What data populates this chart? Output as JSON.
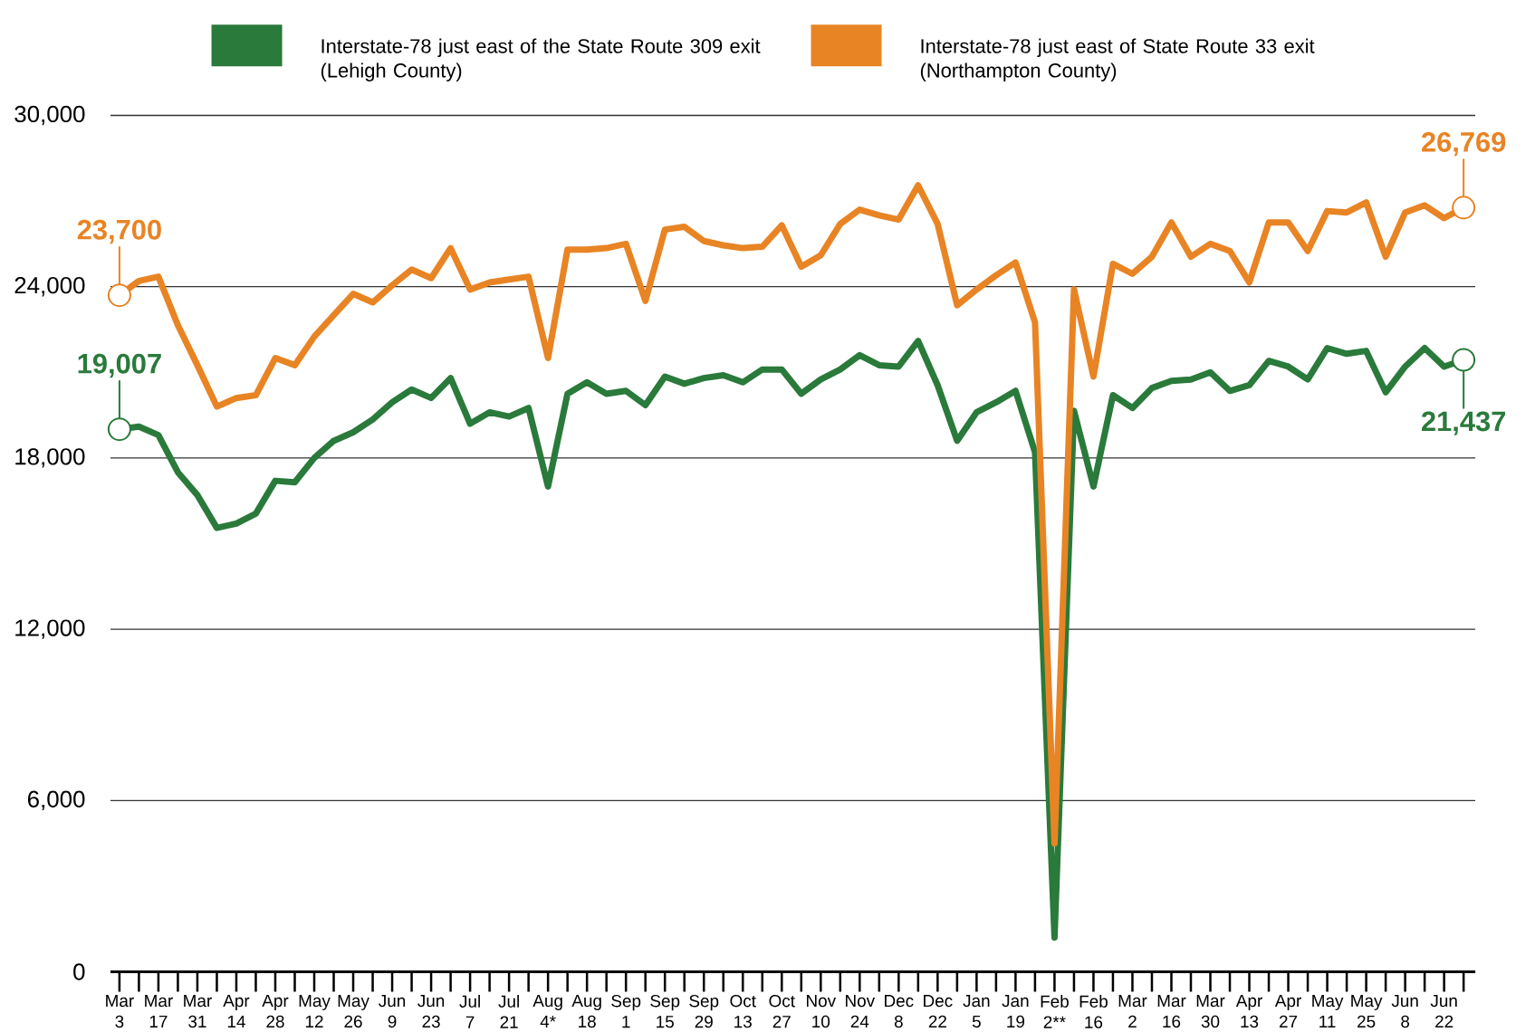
{
  "chart_data": {
    "type": "line",
    "categories": [
      "Mar 3",
      null,
      "Mar 17",
      null,
      "Mar 31",
      null,
      "Apr 14",
      null,
      "Apr 28",
      null,
      "May 12",
      null,
      "May 26",
      null,
      "Jun 9",
      null,
      "Jun 23",
      null,
      "Jul 7",
      null,
      "Jul 21",
      null,
      "Aug 4*",
      null,
      "Aug 18",
      null,
      "Sep 1",
      null,
      "Sep 15",
      null,
      "Sep 29",
      null,
      "Oct 13",
      null,
      "Oct 27",
      null,
      "Nov 10",
      null,
      "Nov 24",
      null,
      "Dec 8",
      null,
      "Dec 22",
      null,
      "Jan 5",
      null,
      "Jan 19",
      null,
      "Feb 2**",
      null,
      "Feb 16",
      null,
      "Mar 2",
      null,
      "Mar 16",
      null,
      "Mar 30",
      null,
      "Apr 13",
      null,
      "Apr 27",
      null,
      "May 11",
      null,
      "May 25",
      null,
      "Jun 8",
      null,
      "Jun 22",
      null
    ],
    "series": [
      {
        "name": "Interstate-78 just east of the State Route 309 exit (Lehigh County)",
        "color": "#2a7a3b",
        "values": [
          19007,
          19100,
          18800,
          17500,
          16700,
          15550,
          15700,
          16050,
          17200,
          17150,
          18000,
          18600,
          18900,
          19350,
          19950,
          20400,
          20100,
          20800,
          19200,
          19600,
          19450,
          19750,
          17000,
          20250,
          20650,
          20250,
          20350,
          19850,
          20850,
          20600,
          20800,
          20900,
          20650,
          21100,
          21100,
          20250,
          20750,
          21100,
          21600,
          21250,
          21200,
          22100,
          20550,
          18600,
          19600,
          19950,
          20350,
          18200,
          1200,
          19650,
          17000,
          20200,
          19750,
          20450,
          20700,
          20750,
          21000,
          20350,
          20550,
          21400,
          21200,
          20750,
          21850,
          21650,
          21750,
          20300,
          21200,
          21850,
          21200,
          21437
        ],
        "value_labels": [
          "19,007",
          null,
          null,
          null,
          null,
          null,
          null,
          null,
          null,
          null,
          null,
          null,
          null,
          null,
          null,
          null,
          null,
          null,
          null,
          null,
          null,
          null,
          null,
          null,
          null,
          null,
          null,
          null,
          null,
          null,
          null,
          null,
          null,
          null,
          null,
          null,
          null,
          null,
          null,
          null,
          null,
          null,
          null,
          null,
          null,
          null,
          null,
          null,
          null,
          null,
          null,
          null,
          null,
          null,
          null,
          null,
          null,
          null,
          null,
          null,
          null,
          null,
          null,
          null,
          null,
          null,
          null,
          null,
          null,
          "21,437"
        ]
      },
      {
        "name": "Interstate-78 just east of State Route 33 exit (Northampton County)",
        "color": "#e88424",
        "values": [
          23700,
          24200,
          24350,
          22650,
          21250,
          19800,
          20100,
          20200,
          21500,
          21250,
          22250,
          23000,
          23750,
          23450,
          24050,
          24600,
          24300,
          25350,
          23900,
          24150,
          24250,
          24350,
          21500,
          25300,
          25300,
          25350,
          25500,
          23500,
          26000,
          26100,
          25600,
          25450,
          25350,
          25400,
          26150,
          24700,
          25100,
          26200,
          26700,
          26500,
          26350,
          27550,
          26200,
          23350,
          23900,
          24400,
          24850,
          22750,
          4500,
          23900,
          20850,
          24800,
          24450,
          25050,
          26250,
          25050,
          25500,
          25250,
          24150,
          26250,
          26250,
          25250,
          26650,
          26600,
          26950,
          25050,
          26600,
          26850,
          26400,
          26769
        ],
        "value_labels": [
          "23,700",
          null,
          null,
          null,
          null,
          null,
          null,
          null,
          null,
          null,
          null,
          null,
          null,
          null,
          null,
          null,
          null,
          null,
          null,
          null,
          null,
          null,
          null,
          null,
          null,
          null,
          null,
          null,
          null,
          null,
          null,
          null,
          null,
          null,
          null,
          null,
          null,
          null,
          null,
          null,
          null,
          null,
          null,
          null,
          null,
          null,
          null,
          null,
          null,
          null,
          null,
          null,
          null,
          null,
          null,
          null,
          null,
          null,
          null,
          null,
          null,
          null,
          null,
          null,
          null,
          null,
          null,
          null,
          null,
          "26,769"
        ]
      }
    ],
    "ylim": [
      0,
      30000
    ],
    "yticks": [
      0,
      {
        "value": 6000,
        "label": "6,000"
      },
      {
        "value": 12000,
        "label": "12,000"
      },
      {
        "value": 18000,
        "label": "18,000"
      },
      {
        "value": 24000,
        "label": "24,000"
      },
      {
        "value": 30000,
        "label": "30,000"
      }
    ],
    "grid": "y",
    "legend": "top"
  }
}
